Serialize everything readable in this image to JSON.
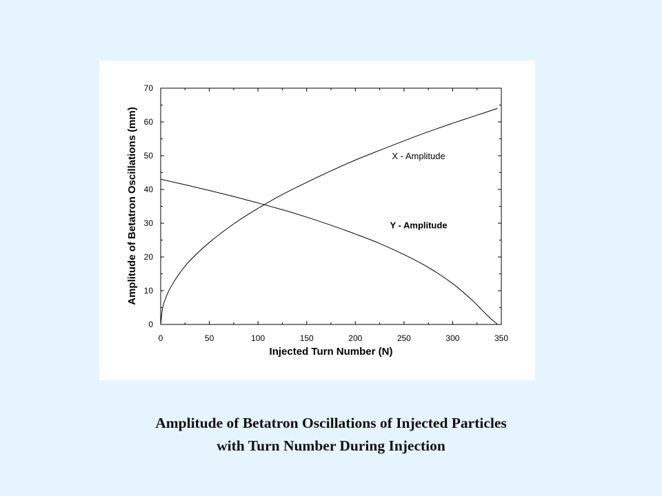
{
  "chart_data": {
    "type": "line",
    "title": "",
    "xlabel": "Injected Turn Number (N)",
    "ylabel": "Amplitude of Betatron Oscillations (mm)",
    "xlim": [
      0,
      350
    ],
    "ylim": [
      0,
      70
    ],
    "x_ticks": [
      0,
      50,
      100,
      150,
      200,
      250,
      300,
      350
    ],
    "y_ticks": [
      0,
      10,
      20,
      30,
      40,
      50,
      60,
      70
    ],
    "grid": false,
    "legend": "none",
    "series": [
      {
        "name": "X - Amplitude",
        "x": [
          0,
          2,
          5,
          10,
          20,
          30,
          50,
          75,
          100,
          125,
          150,
          175,
          200,
          225,
          250,
          275,
          300,
          325,
          346
        ],
        "y": [
          0,
          4.9,
          7.7,
          10.9,
          15.4,
          18.9,
          24.3,
          29.8,
          34.4,
          38.5,
          42.1,
          45.5,
          48.7,
          51.6,
          54.4,
          57.1,
          59.6,
          62.0,
          64.0
        ]
      },
      {
        "name": "Y - Amplitude",
        "x": [
          0,
          25,
          50,
          75,
          100,
          125,
          150,
          175,
          200,
          225,
          250,
          275,
          300,
          320,
          330,
          336,
          340,
          343,
          345,
          346
        ],
        "y": [
          43.0,
          41.4,
          39.7,
          37.9,
          36.0,
          34.0,
          31.8,
          29.4,
          26.8,
          24.0,
          20.7,
          16.9,
          12.1,
          7.2,
          4.3,
          2.6,
          1.5,
          0.8,
          0.3,
          0
        ]
      }
    ],
    "annotations": [
      {
        "text": "X - Amplitude",
        "x": 265,
        "y": 50
      },
      {
        "text": "Y - Amplitude",
        "x": 265,
        "y": 29.5
      }
    ]
  },
  "caption": {
    "line1": "Amplitude of Betatron Oscillations of Injected Particles",
    "line2": "with Turn Number During Injection"
  }
}
